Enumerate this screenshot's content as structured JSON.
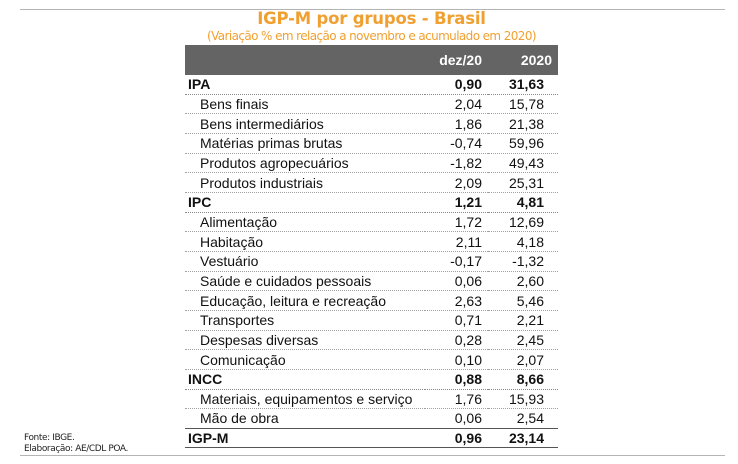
{
  "title": "IGP-M por grupos - Brasil",
  "subtitle": "(Variação % em relação a novembro e acumulado em 2020)",
  "columns": [
    "",
    "dez/20",
    "2020"
  ],
  "rows": [
    {
      "label": "IPA",
      "dez": "0,90",
      "year": "31,63",
      "type": "group"
    },
    {
      "label": "Bens finais",
      "dez": "2,04",
      "year": "15,78",
      "type": "sub"
    },
    {
      "label": "Bens intermediários",
      "dez": "1,86",
      "year": "21,38",
      "type": "sub"
    },
    {
      "label": "Matérias primas brutas",
      "dez": "-0,74",
      "year": "59,96",
      "type": "sub"
    },
    {
      "label": "Produtos agropecuários",
      "dez": "-1,82",
      "year": "49,43",
      "type": "sub"
    },
    {
      "label": "Produtos industriais",
      "dez": "2,09",
      "year": "25,31",
      "type": "sub"
    },
    {
      "label": "IPC",
      "dez": "1,21",
      "year": "4,81",
      "type": "group"
    },
    {
      "label": "Alimentação",
      "dez": "1,72",
      "year": "12,69",
      "type": "sub"
    },
    {
      "label": "Habitação",
      "dez": "2,11",
      "year": "4,18",
      "type": "sub"
    },
    {
      "label": "Vestuário",
      "dez": "-0,17",
      "year": "-1,32",
      "type": "sub"
    },
    {
      "label": "Saúde e cuidados pessoais",
      "dez": "0,06",
      "year": "2,60",
      "type": "sub"
    },
    {
      "label": "Educação, leitura e recreação",
      "dez": "2,63",
      "year": "5,46",
      "type": "sub"
    },
    {
      "label": "Transportes",
      "dez": "0,71",
      "year": "2,21",
      "type": "sub"
    },
    {
      "label": "Despesas diversas",
      "dez": "0,28",
      "year": "2,45",
      "type": "sub"
    },
    {
      "label": "Comunicação",
      "dez": "0,10",
      "year": "2,07",
      "type": "sub"
    },
    {
      "label": "INCC",
      "dez": "0,88",
      "year": "8,66",
      "type": "group"
    },
    {
      "label": "Materiais, equipamentos e serviço",
      "dez": "1,76",
      "year": "15,93",
      "type": "sub"
    },
    {
      "label": "Mão de obra",
      "dez": "0,06",
      "year": "2,54",
      "type": "sub"
    },
    {
      "label": "IGP-M",
      "dez": "0,96",
      "year": "23,14",
      "type": "total"
    }
  ],
  "footer": {
    "source": "Fonte: IBGE.",
    "elaboration": "Elaboração: AE/CDL POA."
  },
  "colors": {
    "title": "#f0a030",
    "header_bg": "#646464",
    "header_text": "#ffffff"
  }
}
